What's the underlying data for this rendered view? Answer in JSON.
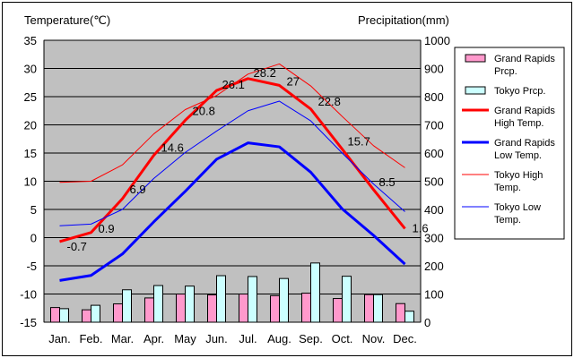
{
  "chart_data": {
    "type": "bar",
    "left_axis_title": "Temperature(℃)",
    "right_axis_title": "Precipitation(mm)",
    "categories": [
      "Jan.",
      "Feb.",
      "Mar.",
      "Apr.",
      "May",
      "Jun.",
      "Jul.",
      "Aug.",
      "Sep.",
      "Oct.",
      "Nov.",
      "Dec."
    ],
    "left_axis": {
      "min": -15,
      "max": 35,
      "step": 5,
      "ticks": [
        "35",
        "30",
        "25",
        "20",
        "15",
        "10",
        "5",
        "0",
        "-5",
        "-10",
        "-15"
      ]
    },
    "right_axis": {
      "min": 0,
      "max": 1000,
      "step": 100,
      "ticks": [
        "1000",
        "900",
        "800",
        "700",
        "600",
        "500",
        "400",
        "300",
        "200",
        "100",
        "0"
      ]
    },
    "grid": true,
    "legend_position": "right",
    "bar_series": [
      {
        "name": "Grand Rapids Prcp.",
        "legend_label": [
          "Grand Rapids",
          "Prcp."
        ],
        "axis": "right",
        "color": "#ff99cc",
        "values": [
          52,
          44,
          65,
          86,
          100,
          97,
          100,
          94,
          103,
          84,
          98,
          66
        ]
      },
      {
        "name": "Tokyo Prcp.",
        "legend_label": [
          "Tokyo Prcp."
        ],
        "axis": "right",
        "color": "#ccffff",
        "values": [
          48,
          60,
          115,
          130,
          128,
          165,
          162,
          155,
          210,
          163,
          98,
          39
        ]
      }
    ],
    "line_series": [
      {
        "name": "Grand Rapids High Temp.",
        "legend_label": [
          "Grand Rapids",
          "High Temp."
        ],
        "axis": "left",
        "color": "#ff0000",
        "width": 3,
        "values": [
          -0.7,
          0.9,
          6.9,
          14.6,
          20.8,
          26.1,
          28.2,
          27,
          22.8,
          15.7,
          8.5,
          1.6
        ]
      },
      {
        "name": "Grand Rapids Low Temp.",
        "legend_label": [
          "Grand Rapids",
          "Low Temp."
        ],
        "axis": "left",
        "color": "#0000ff",
        "width": 3,
        "values": [
          -7.6,
          -6.7,
          -2.9,
          2.8,
          8.2,
          13.9,
          16.8,
          16.1,
          11.6,
          5.1,
          0.4,
          -4.7
        ]
      },
      {
        "name": "Tokyo High Temp.",
        "legend_label": [
          "Tokyo High",
          "Temp."
        ],
        "axis": "left",
        "color": "#ff0000",
        "width": 1,
        "values": [
          9.8,
          10.0,
          12.9,
          18.4,
          22.7,
          25.2,
          29.0,
          30.8,
          26.9,
          21.5,
          16.3,
          12.4
        ]
      },
      {
        "name": "Tokyo Low Temp.",
        "legend_label": [
          "Tokyo Low",
          "Temp."
        ],
        "axis": "left",
        "color": "#0000ff",
        "width": 1,
        "values": [
          2.1,
          2.4,
          5.0,
          10.5,
          15.1,
          18.9,
          22.5,
          24.2,
          20.7,
          15.0,
          9.5,
          4.6
        ]
      }
    ],
    "data_labels": [
      "-0.7",
      "0.9",
      "6.9",
      "14.6",
      "20.8",
      "26.1",
      "28.2",
      "27",
      "22.8",
      "15.7",
      "8.5",
      "1.6"
    ]
  }
}
